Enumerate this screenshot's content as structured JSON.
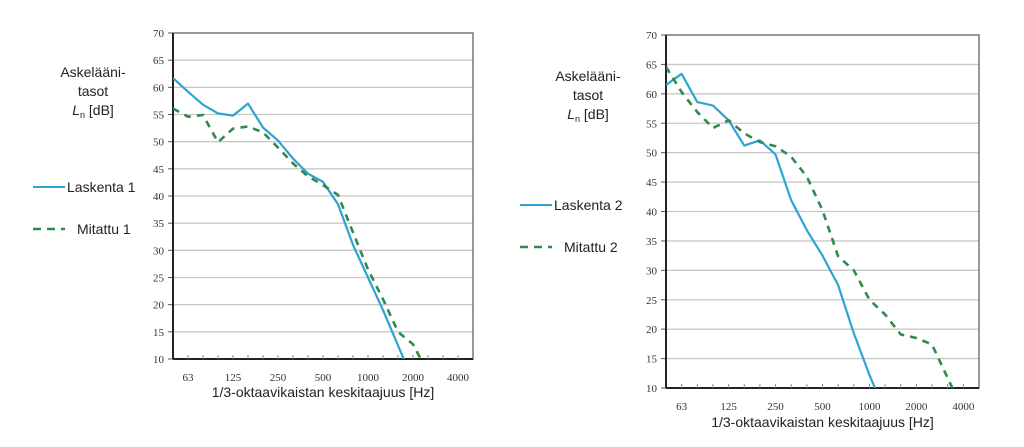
{
  "chart_data": [
    {
      "type": "line",
      "ylabel_lines": [
        "Askeläänі-",
        "tasot"
      ],
      "ylabel_symbol": "L",
      "ylabel_subscript": "n",
      "ylabel_unit": " [dB]",
      "xlabel": "1/3-oktaavikaistan keskitaajuus [Hz]",
      "ylim": [
        10,
        70
      ],
      "yticks": [
        10,
        15,
        20,
        25,
        30,
        35,
        40,
        45,
        50,
        55,
        60,
        65,
        70
      ],
      "x": [
        50,
        63,
        80,
        100,
        125,
        160,
        200,
        250,
        315,
        400,
        500,
        630,
        800,
        1000,
        1250,
        1600,
        2000,
        2500,
        3150,
        4000,
        5000
      ],
      "xticks": [
        "63",
        "125",
        "250",
        "500",
        "1000",
        "2000",
        "4000"
      ],
      "xscale": "log (1/3-octave bands)",
      "grid": true,
      "legend_position": "left",
      "series": [
        {
          "name": "Laskenta 1",
          "style": "solid",
          "color": "#2ea3d3",
          "values": [
            61.7,
            59.2,
            56.8,
            55.2,
            54.8,
            57.0,
            52.6,
            50.2,
            46.9,
            44.1,
            42.6,
            38.5,
            31.0,
            25.0,
            19.0,
            12.5,
            6.0,
            null,
            null,
            null,
            null
          ]
        },
        {
          "name": "Mitattu 1",
          "style": "dashed",
          "color": "#2e8b4a",
          "values": [
            56.1,
            54.6,
            54.9,
            49.9,
            52.4,
            52.8,
            51.7,
            48.9,
            46.0,
            43.6,
            42.0,
            40.2,
            33.3,
            26.5,
            21.0,
            15.0,
            12.7,
            7.5,
            null,
            null,
            null
          ]
        }
      ]
    },
    {
      "type": "line",
      "ylabel_lines": [
        "Askeläänі-",
        "tasot"
      ],
      "ylabel_symbol": "L",
      "ylabel_subscript": "n",
      "ylabel_unit": " [dB]",
      "xlabel": "1/3-oktaavikaistan keskitaajuus [Hz]",
      "ylim": [
        10,
        70
      ],
      "yticks": [
        10,
        15,
        20,
        25,
        30,
        35,
        40,
        45,
        50,
        55,
        60,
        65,
        70
      ],
      "x": [
        50,
        63,
        80,
        100,
        125,
        160,
        200,
        250,
        315,
        400,
        500,
        630,
        800,
        1000,
        1250,
        1600,
        2000,
        2500,
        3150,
        4000,
        5000
      ],
      "xticks": [
        "63",
        "125",
        "250",
        "500",
        "1000",
        "2000",
        "4000"
      ],
      "xscale": "log (1/3-octave bands)",
      "grid": true,
      "legend_position": "left",
      "series": [
        {
          "name": "Laskenta 2",
          "style": "solid",
          "color": "#2ea3d3",
          "values": [
            61.5,
            63.4,
            58.6,
            58.0,
            55.5,
            51.2,
            52.1,
            49.7,
            41.9,
            36.8,
            32.5,
            27.5,
            19.3,
            12.2,
            6.0,
            null,
            null,
            null,
            null,
            null,
            null
          ]
        },
        {
          "name": "Mitattu 2",
          "style": "dashed",
          "color": "#2e8b4a",
          "values": [
            64.6,
            60.3,
            56.9,
            54.2,
            55.5,
            53.3,
            51.8,
            51.1,
            49.3,
            45.9,
            40.2,
            32.4,
            30.0,
            25.0,
            22.5,
            19.1,
            18.5,
            17.4,
            11.7,
            6.0,
            null
          ]
        }
      ]
    }
  ]
}
